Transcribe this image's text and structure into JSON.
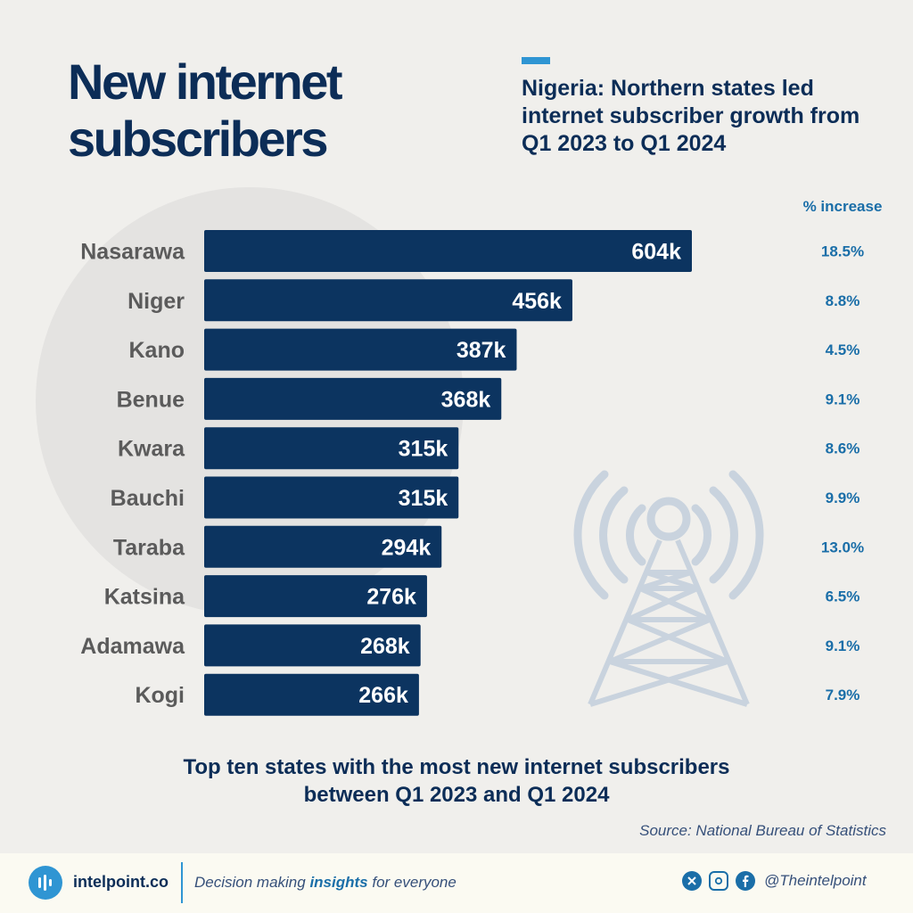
{
  "header": {
    "title": "New internet subscribers",
    "subtitle": "Nigeria: Northern states led internet subscriber growth from Q1 2023 to Q1 2024"
  },
  "colors": {
    "bar": "#0c3460",
    "title": "#0c2d57",
    "accent": "#2f95d3",
    "pct": "#1a6ea8",
    "background": "#f0efec"
  },
  "chart_data": {
    "type": "bar",
    "orientation": "horizontal",
    "categories": [
      "Nasarawa",
      "Niger",
      "Kano",
      "Benue",
      "Kwara",
      "Bauchi",
      "Taraba",
      "Katsina",
      "Adamawa",
      "Kogi"
    ],
    "values": [
      604,
      456,
      387,
      368,
      315,
      315,
      294,
      276,
      268,
      266
    ],
    "value_labels": [
      "604k",
      "456k",
      "387k",
      "368k",
      "315k",
      "315k",
      "294k",
      "276k",
      "268k",
      "266k"
    ],
    "pct_header": "% increase",
    "pct_increase": [
      "18.5%",
      "8.8%",
      "4.5%",
      "9.1%",
      "8.6%",
      "9.9%",
      "13.0%",
      "6.5%",
      "9.1%",
      "7.9%"
    ],
    "xlim": [
      0,
      604
    ],
    "grid": false,
    "legend": "none"
  },
  "caption": {
    "line1": "Top ten states with the most new internet subscribers",
    "line2": "between Q1 2023 and Q1 2024"
  },
  "source": "Source: National Bureau of Statistics",
  "footer": {
    "brand": "intelpoint.co",
    "tagline_pre": "Decision making ",
    "tagline_bold": "insights",
    "tagline_post": " for everyone",
    "handle": "@Theintelpoint",
    "icons": [
      "x-icon",
      "instagram-icon",
      "facebook-icon"
    ]
  }
}
